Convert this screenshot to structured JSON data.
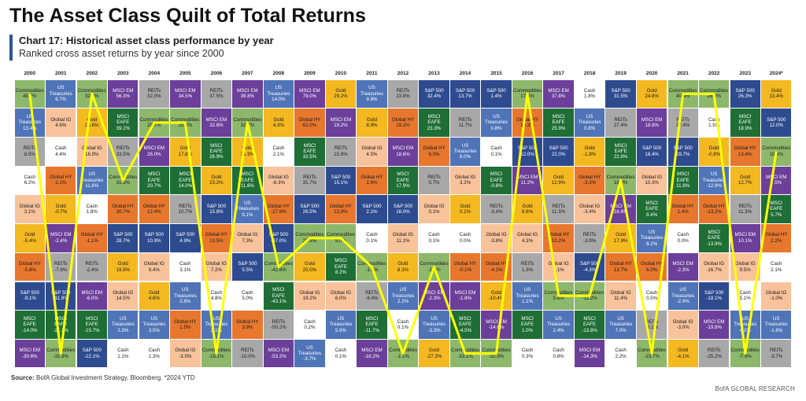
{
  "header": {
    "title": "The Asset Class Quilt of Total Returns"
  },
  "chart_data": {
    "type": "quilt",
    "title": "Chart 17: Historical asset class performance by year",
    "subtitle": "Ranked cross asset returns by year since 2000",
    "categories": [
      "2000",
      "2001",
      "2002",
      "2003",
      "2004",
      "2005",
      "2006",
      "2007",
      "2008",
      "2009",
      "2010",
      "2011",
      "2012",
      "2013",
      "2014",
      "2015",
      "2016",
      "2017",
      "2018",
      "2019",
      "2020",
      "2021",
      "2022",
      "2023",
      "2024*"
    ],
    "asset_colors": {
      "Commodities": "#8db86b",
      "US Treasuries": "#4f74b8",
      "REITs": "#a8a8a8",
      "Cash": "#ffffff",
      "Global IG": "#f8c29b",
      "Gold": "#f4b821",
      "Global HY": "#e8772e",
      "S&P 500": "#2e4b8f",
      "MSCI EAFE": "#1e6e35",
      "MSCI EM": "#6b3f9a"
    },
    "highlight": {
      "name": "Commodities",
      "color": "#ffff00"
    },
    "columns": [
      {
        "assets": [
          "Commodities",
          "US Treasuries",
          "REITs",
          "Cash",
          "Global IG",
          "Gold",
          "Global HY",
          "S&P 500",
          "MSCI EAFE",
          "MSCI EM"
        ],
        "values": [
          49.7,
          13.4,
          8.5,
          6.2,
          3.1,
          -5.4,
          -5.8,
          -9.1,
          -14.0,
          -30.6
        ],
        "value_labels": [
          "49.7%",
          "13.4%",
          "8.5%",
          "6.2%",
          "3.1%",
          "-5.4%",
          "-5.8%",
          "-9.1%",
          "-14.0%",
          "-30.6%"
        ]
      },
      {
        "assets": [
          "US Treasuries",
          "Global IG",
          "Cash",
          "Global HY",
          "Gold",
          "MSCI EM",
          "REITs",
          "S&P 500",
          "MSCI EAFE",
          "Commodities"
        ],
        "values": [
          6.7,
          4.6,
          4.4,
          3.1,
          -0.7,
          -2.4,
          -7.8,
          -11.9,
          -21.2,
          -31.9
        ],
        "value_labels": [
          "6.7%",
          "4.6%",
          "4.4%",
          "3.1%",
          "-0.7%",
          "-2.4%",
          "-7.8%",
          "-11.9%",
          "-21.2%",
          "-31.9%"
        ]
      },
      {
        "assets": [
          "Commodities",
          "Gold",
          "Global IG",
          "US Treasuries",
          "Cash",
          "Global HY",
          "REITs",
          "MSCI EM",
          "MSCI EAFE",
          "S&P 500"
        ],
        "values": [
          32.1,
          25.6,
          16.9,
          11.6,
          1.8,
          -1.1,
          -2.4,
          -6.0,
          -15.7,
          -22.1
        ],
        "value_labels": [
          "32.1%",
          "25.6%",
          "16.9%",
          "11.6%",
          "1.8%",
          "-1.1%",
          "-2.4%",
          "-6.0%",
          "-15.7%",
          "-22.1%"
        ]
      },
      {
        "assets": [
          "MSCI EM",
          "MSCI EAFE",
          "REITs",
          "Commodities",
          "Global HY",
          "S&P 500",
          "Gold",
          "Global IG",
          "US Treasuries",
          "Cash"
        ],
        "values": [
          56.3,
          39.2,
          33.5,
          31.3,
          30.7,
          28.7,
          19.9,
          14.5,
          2.3,
          1.1
        ],
        "value_labels": [
          "56.3%",
          "39.2%",
          "33.5%",
          "31.3%",
          "30.7%",
          "28.7%",
          "19.9%",
          "14.5%",
          "2.3%",
          "1.1%"
        ]
      },
      {
        "assets": [
          "REITs",
          "Commodities",
          "MSCI EM",
          "MSCI EAFE",
          "Global HY",
          "S&P 500",
          "Global IG",
          "Gold",
          "US Treasuries",
          "Cash"
        ],
        "values": [
          32.0,
          28.7,
          26.0,
          20.7,
          12.4,
          10.9,
          9.4,
          4.6,
          3.5,
          1.3
        ],
        "value_labels": [
          "32.0%",
          "28.7%",
          "26.0%",
          "20.7%",
          "12.4%",
          "10.9%",
          "9.4%",
          "4.6%",
          "3.5%",
          "1.3%"
        ]
      },
      {
        "assets": [
          "MSCI EM",
          "Commodities",
          "Gold",
          "MSCI EAFE",
          "REITs",
          "S&P 500",
          "Cash",
          "US Treasuries",
          "Global HY",
          "Global IG"
        ],
        "values": [
          34.5,
          25.6,
          17.8,
          14.0,
          10.7,
          4.9,
          3.1,
          2.8,
          1.5,
          -3.0
        ],
        "value_labels": [
          "34.5%",
          "25.6%",
          "17.8%",
          "14.0%",
          "10.7%",
          "4.9%",
          "3.1%",
          "2.8%",
          "1.5%",
          "-3.0%"
        ]
      },
      {
        "assets": [
          "REITs",
          "MSCI EM",
          "MSCI EAFE",
          "Gold",
          "S&P 500",
          "Global HY",
          "Global IG",
          "Cash",
          "US Treasuries",
          "Commodities"
        ],
        "values": [
          37.5,
          32.6,
          26.9,
          23.2,
          15.8,
          13.5,
          7.2,
          4.8,
          3.1,
          -15.1
        ],
        "value_labels": [
          "37.5%",
          "32.6%",
          "26.9%",
          "23.2%",
          "15.8%",
          "13.5%",
          "7.2%",
          "4.8%",
          "3.1%",
          "-15.1%"
        ]
      },
      {
        "assets": [
          "MSCI EM",
          "Commodities",
          "Gold",
          "MSCI EAFE",
          "US Treasuries",
          "Global IG",
          "S&P 500",
          "Cash",
          "Global HY",
          "REITs"
        ],
        "values": [
          39.8,
          32.7,
          31.9,
          11.6,
          9.1,
          7.3,
          5.5,
          5.0,
          3.9,
          -10.0
        ],
        "value_labels": [
          "39.8%",
          "32.7%",
          "31.9%",
          "11.6%",
          "9.1%",
          "7.3%",
          "5.5%",
          "5.0%",
          "3.9%",
          "-10.0%"
        ]
      },
      {
        "assets": [
          "US Treasuries",
          "Gold",
          "Cash",
          "Global IG",
          "Global HY",
          "S&P 500",
          "Commodities",
          "MSCI EAFE",
          "REITs",
          "MSCI EM"
        ],
        "values": [
          14.0,
          4.3,
          2.1,
          -8.3,
          -27.9,
          -37.0,
          -42.8,
          -43.1,
          -50.2,
          -53.2
        ],
        "value_labels": [
          "14.0%",
          "4.3%",
          "2.1%",
          "-8.3%",
          "-27.9%",
          "-37.0%",
          "-42.8%",
          "-43.1%",
          "-50.2%",
          "-53.2%"
        ]
      },
      {
        "assets": [
          "MSCI EM",
          "Global HY",
          "MSCI EAFE",
          "REITs",
          "S&P 500",
          "Commodities",
          "Gold",
          "Global IG",
          "Cash",
          "US Treasuries"
        ],
        "values": [
          79.0,
          62.0,
          32.5,
          31.7,
          26.5,
          25.9,
          25.0,
          19.2,
          0.2,
          -3.7
        ],
        "value_labels": [
          "79.0%",
          "62.0%",
          "32.5%",
          "31.7%",
          "26.5%",
          "25.9%",
          "25.0%",
          "19.2%",
          "0.2%",
          "-3.7%"
        ]
      },
      {
        "assets": [
          "Gold",
          "MSCI EM",
          "REITs",
          "S&P 500",
          "Global HY",
          "Commodities",
          "MSCI EAFE",
          "Global IG",
          "US Treasuries",
          "Cash"
        ],
        "values": [
          29.2,
          19.2,
          15.9,
          15.1,
          13.9,
          9.0,
          8.2,
          6.0,
          5.9,
          0.1
        ],
        "value_labels": [
          "29.2%",
          "19.2%",
          "15.9%",
          "15.1%",
          "13.9%",
          "9.0%",
          "8.2%",
          "6.0%",
          "5.9%",
          "0.1%"
        ]
      },
      {
        "assets": [
          "US Treasuries",
          "Gold",
          "Global IG",
          "Global HY",
          "S&P 500",
          "Cash",
          "Commodities",
          "REITs",
          "MSCI EAFE",
          "MSCI EM"
        ],
        "values": [
          9.8,
          8.9,
          4.5,
          2.6,
          2.1,
          0.1,
          -1.2,
          -9.4,
          -11.7,
          -18.2
        ],
        "value_labels": [
          "9.8%",
          "8.9%",
          "4.5%",
          "2.6%",
          "2.1%",
          "0.1%",
          "-1.2%",
          "-9.4%",
          "-11.7%",
          "-18.2%"
        ]
      },
      {
        "assets": [
          "REITs",
          "Global HY",
          "MSCI EM",
          "MSCI EAFE",
          "S&P 500",
          "Global IG",
          "Gold",
          "US Treasuries",
          "Cash",
          "Commodities"
        ],
        "values": [
          23.8,
          19.3,
          18.6,
          17.9,
          16.0,
          11.1,
          8.3,
          2.2,
          0.1,
          -1.1
        ],
        "value_labels": [
          "23.8%",
          "19.3%",
          "18.6%",
          "17.9%",
          "16.0%",
          "11.1%",
          "8.3%",
          "2.2%",
          "0.1%",
          "-1.1%"
        ]
      },
      {
        "assets": [
          "S&P 500",
          "MSCI EAFE",
          "Global HY",
          "REITs",
          "Global IG",
          "Cash",
          "Commodities",
          "MSCI EM",
          "US Treasuries",
          "Gold"
        ],
        "values": [
          32.4,
          23.3,
          6.0,
          0.7,
          0.1,
          0.1,
          -1.2,
          -2.3,
          -3.3,
          -27.3
        ],
        "value_labels": [
          "32.4%",
          "23.3%",
          "6.0%",
          "0.7%",
          "0.1%",
          "0.1%",
          "-1.2%",
          "-2.3%",
          "-3.3%",
          "-27.3%"
        ]
      },
      {
        "assets": [
          "S&P 500",
          "REITs",
          "US Treasuries",
          "Global IG",
          "Gold",
          "Cash",
          "Global HY",
          "MSCI EM",
          "MSCI EAFE",
          "Commodities"
        ],
        "values": [
          13.7,
          11.7,
          6.0,
          3.2,
          0.1,
          0.0,
          -0.1,
          -1.8,
          -4.5,
          -33.1
        ],
        "value_labels": [
          "13.7%",
          "11.7%",
          "6.0%",
          "3.2%",
          "0.1%",
          "0.0%",
          "-0.1%",
          "-1.8%",
          "-4.5%",
          "-33.1%"
        ]
      },
      {
        "assets": [
          "S&P 500",
          "US Treasuries",
          "Cash",
          "MSCI EAFE",
          "REITs",
          "Global IG",
          "Global HY",
          "Gold",
          "MSCI EM",
          "Commodities"
        ],
        "values": [
          1.4,
          0.8,
          0.1,
          -0.8,
          -3.4,
          -3.8,
          -4.2,
          -10.4,
          -14.6,
          -32.9
        ],
        "value_labels": [
          "1.4%",
          "0.8%",
          "0.1%",
          "-0.8%",
          "-3.4%",
          "-3.8%",
          "-4.2%",
          "-10.4%",
          "-14.6%",
          "-32.9%"
        ]
      },
      {
        "assets": [
          "Commodities",
          "Global HY",
          "S&P 500",
          "MSCI EM",
          "Gold",
          "Global IG",
          "REITs",
          "US Treasuries",
          "MSCI EAFE",
          "Cash"
        ],
        "values": [
          17.4,
          14.3,
          12.0,
          11.2,
          8.6,
          4.3,
          1.3,
          1.1,
          1.0,
          0.3
        ],
        "value_labels": [
          "17.4%",
          "14.3%",
          "12.0%",
          "11.2%",
          "8.6%",
          "4.3%",
          "1.3%",
          "1.1%",
          "1.0%",
          "0.3%"
        ]
      },
      {
        "assets": [
          "MSCI EM",
          "MSCI EAFE",
          "S&P 500",
          "Gold",
          "REITs",
          "Global HY",
          "Global IG",
          "Commodities",
          "US Treasuries",
          "Cash"
        ],
        "values": [
          37.8,
          25.9,
          22.0,
          12.9,
          11.5,
          10.2,
          9.1,
          5.8,
          2.4,
          0.8
        ],
        "value_labels": [
          "37.8%",
          "25.9%",
          "22.0%",
          "12.9%",
          "11.5%",
          "10.2%",
          "9.1%",
          "5.8%",
          "2.4%",
          "0.8%"
        ]
      },
      {
        "assets": [
          "Cash",
          "US Treasuries",
          "Gold",
          "Global HY",
          "Global IG",
          "REITs",
          "S&P 500",
          "Commodities",
          "MSCI EAFE",
          "MSCI EM"
        ],
        "values": [
          1.8,
          0.8,
          -1.9,
          -3.3,
          -3.4,
          -3.9,
          -4.3,
          -11.2,
          -13.8,
          -14.3
        ],
        "value_labels": [
          "1.8%",
          "0.8%",
          "-1.9%",
          "-3.3%",
          "-3.4%",
          "-3.9%",
          "-4.3%",
          "-11.2%",
          "-13.8%",
          "-14.3%"
        ]
      },
      {
        "assets": [
          "S&P 500",
          "REITs",
          "MSCI EAFE",
          "Commodities",
          "MSCI EM",
          "Gold",
          "Global HY",
          "Global IG",
          "US Treasuries",
          "Cash"
        ],
        "values": [
          31.5,
          27.4,
          22.8,
          18.9,
          18.6,
          17.9,
          13.7,
          11.4,
          7.0,
          2.2
        ],
        "value_labels": [
          "31.5%",
          "27.4%",
          "22.8%",
          "18.9%",
          "18.6%",
          "17.9%",
          "13.7%",
          "11.4%",
          "7.0%",
          "2.2%"
        ]
      },
      {
        "assets": [
          "Gold",
          "MSCI EM",
          "S&P 500",
          "Global IG",
          "MSCI EAFE",
          "US Treasuries",
          "Global HY",
          "Cash",
          "REITs",
          "Commodities"
        ],
        "values": [
          24.8,
          18.8,
          18.4,
          10.3,
          8.4,
          8.2,
          6.0,
          0.5,
          -8.1,
          -23.7
        ],
        "value_labels": [
          "24.8%",
          "18.8%",
          "18.4%",
          "10.3%",
          "8.4%",
          "8.2%",
          "6.0%",
          "0.5%",
          "-8.1%",
          "-23.7%"
        ]
      },
      {
        "assets": [
          "Commodities",
          "REITs",
          "S&P 500",
          "MSCI EAFE",
          "Global HY",
          "Cash",
          "MSCI EM",
          "US Treasuries",
          "Global IG",
          "Gold"
        ],
        "values": [
          40.4,
          37.4,
          28.7,
          11.8,
          1.4,
          0.0,
          -2.3,
          -2.4,
          -3.0,
          -4.1
        ],
        "value_labels": [
          "40.4%",
          "37.4%",
          "28.7%",
          "11.8%",
          "1.4%",
          "0.0%",
          "-2.3%",
          "-2.4%",
          "-3.0%",
          "-4.1%"
        ]
      },
      {
        "assets": [
          "Commodities",
          "Cash",
          "Gold",
          "US Treasuries",
          "Global HY",
          "MSCI EAFE",
          "Global IG",
          "S&P 500",
          "MSCI EM",
          "REITs"
        ],
        "values": [
          26.0,
          1.5,
          -0.8,
          -12.9,
          -13.2,
          -13.9,
          -16.7,
          -18.1,
          -19.8,
          -25.2
        ],
        "value_labels": [
          "26.0%",
          "1.5%",
          "-0.8%",
          "-12.9%",
          "-13.2%",
          "-13.9%",
          "-16.7%",
          "-18.1%",
          "-19.8%",
          "-25.2%"
        ]
      },
      {
        "assets": [
          "S&P 500",
          "MSCI EAFE",
          "Global HY",
          "Gold",
          "REITs",
          "MSCI EM",
          "Global IG",
          "Cash",
          "US Treasuries",
          "Commodities"
        ],
        "values": [
          26.3,
          18.9,
          13.4,
          12.7,
          11.3,
          10.1,
          9.5,
          5.1,
          4.1,
          -7.9
        ],
        "value_labels": [
          "26.3%",
          "18.9%",
          "13.4%",
          "12.7%",
          "11.3%",
          "10.1%",
          "9.5%",
          "5.1%",
          "4.1%",
          "-7.9%"
        ]
      },
      {
        "assets": [
          "Gold",
          "S&P 500",
          "Commodities",
          "MSCI EM",
          "MSCI EAFE",
          "Global HY",
          "Cash",
          "Global IG",
          "US Treasuries",
          "REITs"
        ],
        "values": [
          13.4,
          12.0,
          10.4,
          7.5,
          5.7,
          2.2,
          2.1,
          -1.0,
          -1.6,
          -3.7
        ],
        "value_labels": [
          "13.4%",
          "12.0%",
          "10.4%",
          "7.5%",
          "5.7%",
          "2.2%",
          "2.1%",
          "-1.0%",
          "-1.6%",
          "-3.7%"
        ]
      }
    ]
  },
  "footer": {
    "source_label": "Source:",
    "source": "BofA Global Investment Strategy, Bloomberg. *2024 YTD",
    "brand": "BofA GLOBAL RESEARCH"
  }
}
